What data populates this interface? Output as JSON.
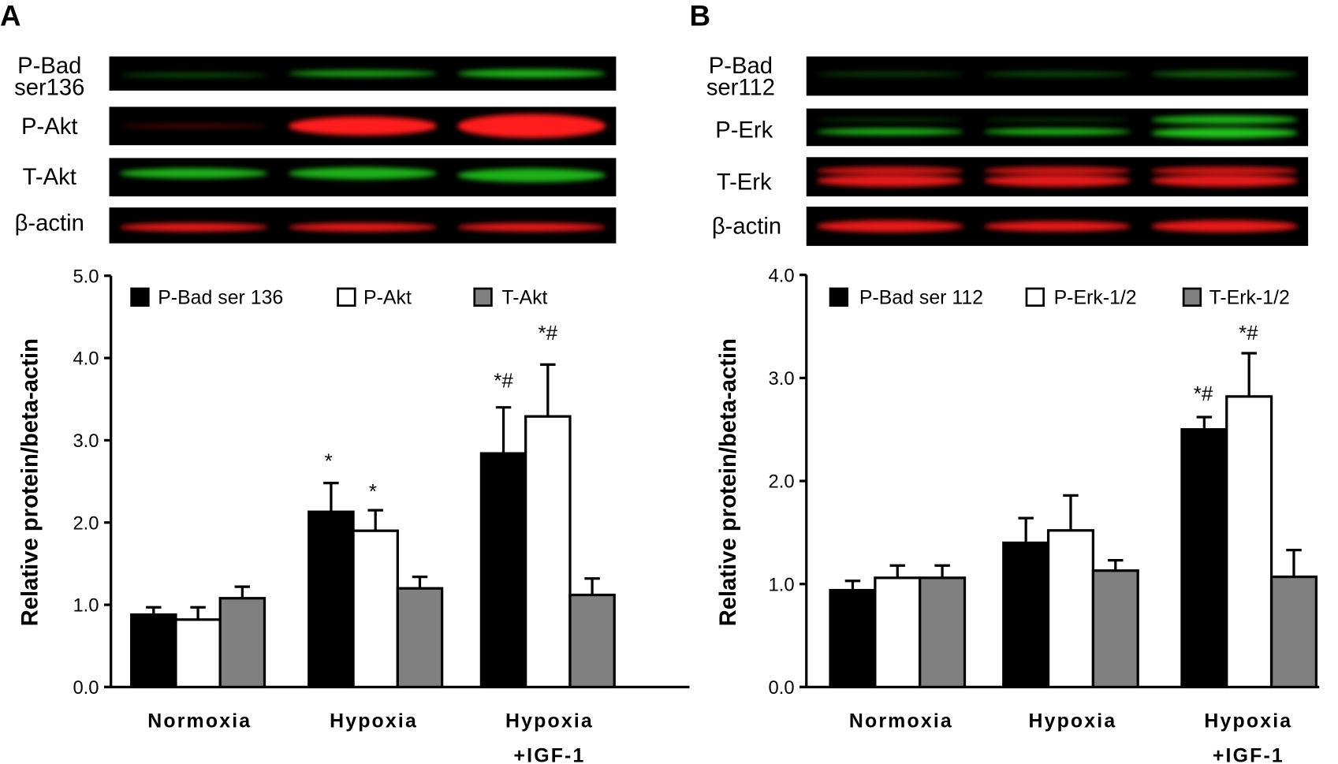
{
  "panels": {
    "A": {
      "letter": "A",
      "blot_labels": [
        "P-Bad",
        "ser136",
        "P-Akt",
        "T-Akt",
        "β-actin"
      ],
      "legend": [
        "P-Bad ser 136",
        "P-Akt",
        "T-Akt"
      ],
      "categories": [
        "Normoxia",
        "Hypoxia",
        "Hypoxia",
        "+IGF-1"
      ],
      "ylabel": "Relative protein/beta-actin",
      "ticks": [
        "0.0",
        "1.0",
        "2.0",
        "3.0",
        "4.0",
        "5.0"
      ],
      "annotations": [
        "*",
        "*",
        "*#",
        "*#"
      ]
    },
    "B": {
      "letter": "B",
      "blot_labels": [
        "P-Bad",
        "ser112",
        "P-Erk",
        "T-Erk",
        "β-actin"
      ],
      "legend": [
        "P-Bad ser 112",
        "P-Erk-1/2",
        "T-Erk-1/2"
      ],
      "categories": [
        "Normoxia",
        "Hypoxia",
        "Hypoxia",
        "+IGF-1"
      ],
      "ylabel": "Relative protein/beta-actin",
      "ticks": [
        "0.0",
        "1.0",
        "2.0",
        "3.0",
        "4.0"
      ],
      "annotations": [
        "*#",
        "*#"
      ]
    }
  },
  "chart_data": [
    {
      "type": "bar",
      "title": "A",
      "categories": [
        "Normoxia",
        "Hypoxia",
        "Hypoxia +IGF-1"
      ],
      "ylabel": "Relative protein/beta-actin",
      "ylim": [
        0,
        5
      ],
      "legend_position": "top",
      "series": [
        {
          "name": "P-Bad ser 136",
          "color": "#000000",
          "values": [
            0.88,
            2.13,
            2.84
          ],
          "error_top": [
            0.97,
            2.48,
            3.4
          ],
          "significance": [
            "",
            "*",
            "*#"
          ]
        },
        {
          "name": "P-Akt",
          "color": "#ffffff",
          "values": [
            0.82,
            1.9,
            3.29
          ],
          "error_top": [
            0.97,
            2.15,
            3.92
          ],
          "significance": [
            "",
            "*",
            "*#"
          ]
        },
        {
          "name": "T-Akt",
          "color": "#808080",
          "values": [
            1.08,
            1.2,
            1.12
          ],
          "error_top": [
            1.22,
            1.34,
            1.32
          ],
          "significance": [
            "",
            "",
            ""
          ]
        }
      ]
    },
    {
      "type": "bar",
      "title": "B",
      "categories": [
        "Normoxia",
        "Hypoxia",
        "Hypoxia +IGF-1"
      ],
      "ylabel": "Relative protein/beta-actin",
      "ylim": [
        0,
        4
      ],
      "legend_position": "top",
      "series": [
        {
          "name": "P-Bad ser 112",
          "color": "#000000",
          "values": [
            0.94,
            1.4,
            2.5
          ],
          "error_top": [
            1.03,
            1.64,
            2.62
          ],
          "significance": [
            "",
            "",
            "*#"
          ]
        },
        {
          "name": "P-Erk-1/2",
          "color": "#ffffff",
          "values": [
            1.06,
            1.52,
            2.82
          ],
          "error_top": [
            1.18,
            1.86,
            3.24
          ],
          "significance": [
            "",
            "",
            "*#"
          ]
        },
        {
          "name": "T-Erk-1/2",
          "color": "#808080",
          "values": [
            1.06,
            1.13,
            1.07
          ],
          "error_top": [
            1.18,
            1.23,
            1.33
          ],
          "significance": [
            "",
            "",
            ""
          ]
        }
      ]
    }
  ]
}
